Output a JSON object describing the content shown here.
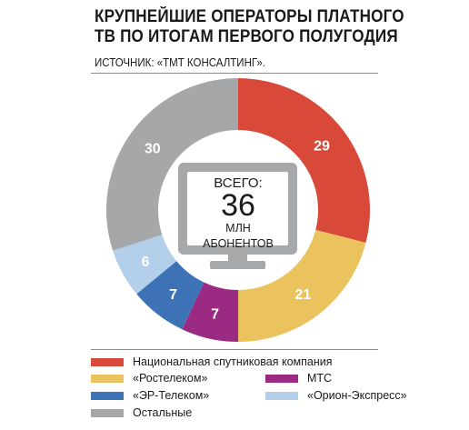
{
  "title_lines": [
    "КРУПНЕЙШИЕ ОПЕРАТОРЫ ПЛАТНОГО",
    "ТВ ПО ИТОГАМ ПЕРВОГО ПОЛУГОДИЯ"
  ],
  "source": "ИСТОЧНИК: «ТМТ КОНСАЛТИНГ».",
  "center": {
    "line1": "ВСЕГО:",
    "total": "36",
    "line3": "МЛН",
    "line4": "АБОНЕНТОВ"
  },
  "colors": {
    "tv_frame": "#a7a8aa",
    "tv_screen": "#ffffff",
    "label_text": "#ffffff"
  },
  "chart_data": {
    "type": "pie",
    "style": "donut",
    "start_angle_deg": 0,
    "direction": "clockwise",
    "slices": [
      {
        "name": "Национальная спутниковая компания",
        "value": 29,
        "label": "29",
        "color": "#d9493a"
      },
      {
        "name": "«Ростелеком»",
        "value": 21,
        "label": "21",
        "color": "#ebc35e"
      },
      {
        "name": "МТС",
        "value": 7,
        "label": "7",
        "color": "#9b2a83"
      },
      {
        "name": "«ЭР-Телеком»",
        "value": 7,
        "label": "7",
        "color": "#3d73b6"
      },
      {
        "name": "«Орион-Экспресс»",
        "value": 6,
        "label": "6",
        "color": "#b4cfe9"
      },
      {
        "name": "Остальные",
        "value": 30,
        "label": "30",
        "color": "#a6a7a9"
      }
    ],
    "legend": {
      "placement": "bottom",
      "items": [
        {
          "label": "Национальная спутниковая компания",
          "color": "#d9493a"
        },
        {
          "label": "«Ростелеком»",
          "color": "#ebc35e"
        },
        {
          "label": "МТС",
          "color": "#9b2a83"
        },
        {
          "label": "«ЭР-Телеком»",
          "color": "#3d73b6"
        },
        {
          "label": "«Орион-Экспресс»",
          "color": "#b4cfe9"
        },
        {
          "label": "Остальные",
          "color": "#a6a7a9"
        }
      ]
    }
  }
}
